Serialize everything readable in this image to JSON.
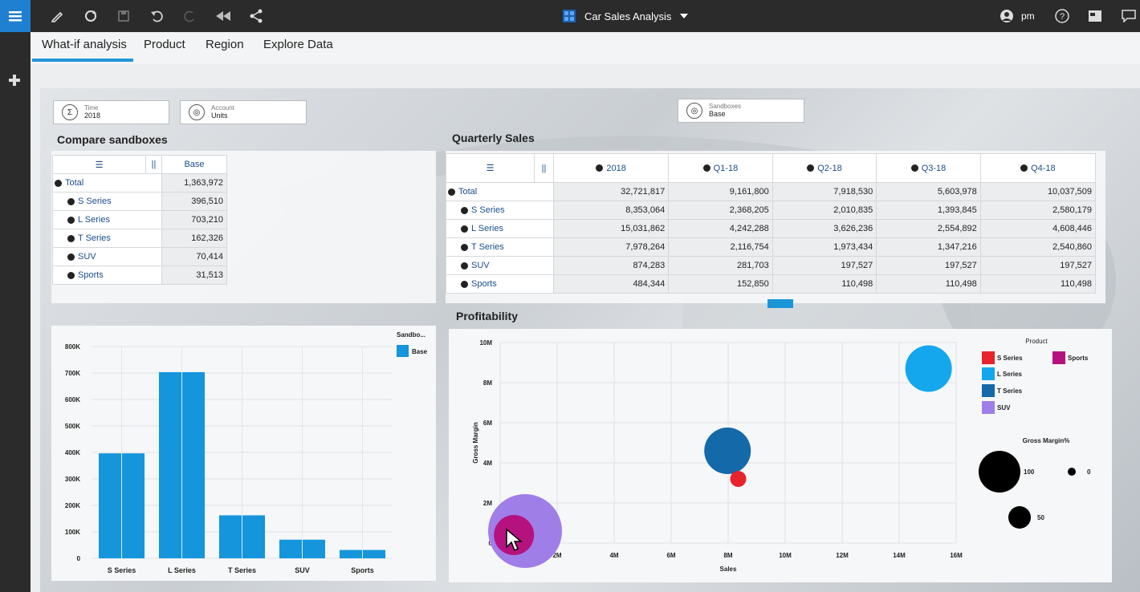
{
  "app": {
    "title": "Car Sales Analysis",
    "user": "pm"
  },
  "tabs": [
    "What-if analysis",
    "Product",
    "Region",
    "Explore Data"
  ],
  "prompts": {
    "time": {
      "label": "Time",
      "value": "2018"
    },
    "account": {
      "label": "Account",
      "value": "Units"
    },
    "sandboxes": {
      "label": "Sandboxes",
      "value": "Base"
    }
  },
  "compare": {
    "title": "Compare sandboxes",
    "column": "Base",
    "rows": [
      {
        "label": "Total",
        "value": "1,363,972"
      },
      {
        "label": "S Series",
        "value": "396,510"
      },
      {
        "label": "L Series",
        "value": "703,210"
      },
      {
        "label": "T Series",
        "value": "162,326"
      },
      {
        "label": "SUV",
        "value": "70,414"
      },
      {
        "label": "Sports",
        "value": "31,513"
      }
    ]
  },
  "quarterly": {
    "title": "Quarterly Sales",
    "columns": [
      "2018",
      "Q1-18",
      "Q2-18",
      "Q3-18",
      "Q4-18"
    ],
    "rows": [
      {
        "label": "Total",
        "values": [
          "32,721,817",
          "9,161,800",
          "7,918,530",
          "5,603,978",
          "10,037,509"
        ]
      },
      {
        "label": "S Series",
        "values": [
          "8,353,064",
          "2,368,205",
          "2,010,835",
          "1,393,845",
          "2,580,179"
        ]
      },
      {
        "label": "L Series",
        "values": [
          "15,031,862",
          "4,242,288",
          "3,626,236",
          "2,554,892",
          "4,608,446"
        ]
      },
      {
        "label": "T Series",
        "values": [
          "7,978,264",
          "2,116,754",
          "1,973,434",
          "1,347,216",
          "2,540,860"
        ]
      },
      {
        "label": "SUV",
        "values": [
          "874,283",
          "281,703",
          "197,527",
          "197,527",
          "197,527"
        ]
      },
      {
        "label": "Sports",
        "values": [
          "484,344",
          "152,850",
          "110,498",
          "110,498",
          "110,498"
        ]
      }
    ]
  },
  "profitability_title": "Profitability",
  "chart_data": [
    {
      "type": "bar",
      "categories": [
        "S Series",
        "L Series",
        "T Series",
        "SUV",
        "Sports"
      ],
      "series": [
        {
          "name": "Base",
          "values": [
            396510,
            703210,
            162326,
            70414,
            31513
          ]
        }
      ],
      "ylim": [
        0,
        800000
      ],
      "yticks": [
        "0",
        "100K",
        "200K",
        "300K",
        "400K",
        "500K",
        "600K",
        "700K",
        "800K"
      ],
      "legend_title": "Sandbo...",
      "color": "#1495dc"
    },
    {
      "type": "scatter",
      "xlabel": "Sales",
      "ylabel": "Gross Margin",
      "xlim": [
        0,
        16000000
      ],
      "ylim": [
        0,
        10000000
      ],
      "xticks": [
        "0",
        "2M",
        "4M",
        "6M",
        "8M",
        "10M",
        "12M",
        "14M",
        "16M"
      ],
      "yticks": [
        "0",
        "2M",
        "4M",
        "6M",
        "8M",
        "10M"
      ],
      "legend_title": "Product",
      "size_legend_title": "Gross Margin%",
      "size_legend": [
        "100",
        "0",
        "50"
      ],
      "points": [
        {
          "name": "S Series",
          "x": 8353064,
          "y": 3200000,
          "size": 20,
          "color": "#e8232b"
        },
        {
          "name": "L Series",
          "x": 15031862,
          "y": 8700000,
          "size": 58,
          "color": "#14a7ee"
        },
        {
          "name": "T Series",
          "x": 7978264,
          "y": 4600000,
          "size": 58,
          "color": "#1469a8"
        },
        {
          "name": "SUV",
          "x": 874283,
          "y": 600000,
          "size": 92,
          "color": "#9f7ee8"
        },
        {
          "name": "Sports",
          "x": 484344,
          "y": 400000,
          "size": 50,
          "color": "#b5127f"
        }
      ]
    }
  ]
}
